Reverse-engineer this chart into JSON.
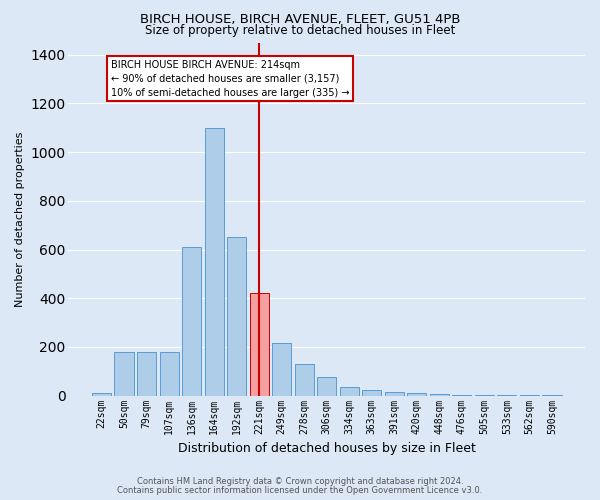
{
  "title1": "BIRCH HOUSE, BIRCH AVENUE, FLEET, GU51 4PB",
  "title2": "Size of property relative to detached houses in Fleet",
  "xlabel": "Distribution of detached houses by size in Fleet",
  "ylabel": "Number of detached properties",
  "categories": [
    "22sqm",
    "50sqm",
    "79sqm",
    "107sqm",
    "136sqm",
    "164sqm",
    "192sqm",
    "221sqm",
    "249sqm",
    "278sqm",
    "306sqm",
    "334sqm",
    "363sqm",
    "391sqm",
    "420sqm",
    "448sqm",
    "476sqm",
    "505sqm",
    "533sqm",
    "562sqm",
    "590sqm"
  ],
  "values": [
    10,
    180,
    180,
    180,
    610,
    1100,
    650,
    420,
    215,
    130,
    75,
    35,
    25,
    15,
    10,
    6,
    4,
    3,
    2,
    2,
    1
  ],
  "bar_color": "#aecde8",
  "bar_edge_color": "#5b9bd5",
  "highlight_bar_index": 7,
  "highlight_bar_color": "#f4a0a0",
  "highlight_bar_edge_color": "#cc0000",
  "vline_color": "#cc0000",
  "annotation_text": "BIRCH HOUSE BIRCH AVENUE: 214sqm\n← 90% of detached houses are smaller (3,157)\n10% of semi-detached houses are larger (335) →",
  "annotation_box_facecolor": "#ffffff",
  "annotation_box_edgecolor": "#cc0000",
  "ylim": [
    0,
    1450
  ],
  "yticks": [
    0,
    200,
    400,
    600,
    800,
    1000,
    1200,
    1400
  ],
  "footnote1": "Contains HM Land Registry data © Crown copyright and database right 2024.",
  "footnote2": "Contains public sector information licensed under the Open Government Licence v3.0.",
  "bg_color": "#dce8f5",
  "plot_bg_color": "#dce8f5",
  "grid_color": "#ffffff",
  "title1_fontsize": 9.5,
  "title2_fontsize": 8.5,
  "tick_fontsize": 7,
  "ylabel_fontsize": 8,
  "xlabel_fontsize": 9,
  "annotation_fontsize": 7,
  "footnote_fontsize": 6
}
